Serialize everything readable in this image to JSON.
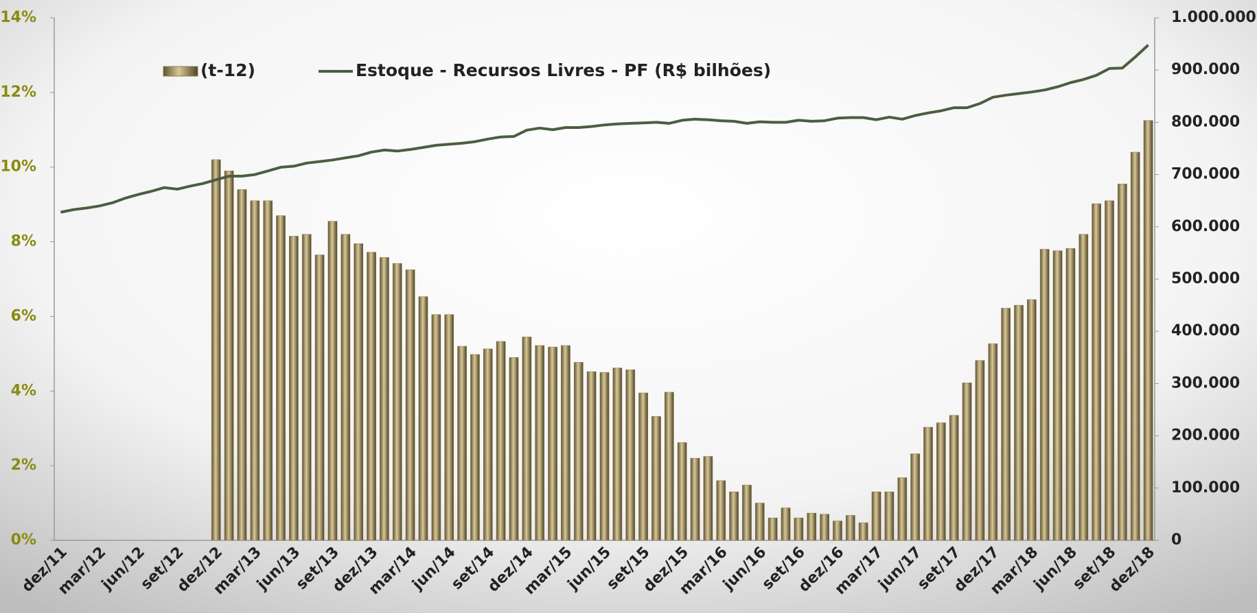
{
  "chart_data": {
    "type": "bar-line",
    "categories": [
      "dez/11",
      null,
      null,
      "mar/12",
      null,
      null,
      "jun/12",
      null,
      null,
      "set/12",
      null,
      null,
      "dez/12",
      null,
      null,
      "mar/13",
      null,
      null,
      "jun/13",
      null,
      null,
      "set/13",
      null,
      null,
      "dez/13",
      null,
      null,
      "mar/14",
      null,
      null,
      "jun/14",
      null,
      null,
      "set/14",
      null,
      null,
      "dez/14",
      null,
      null,
      "mar/15",
      null,
      null,
      "jun/15",
      null,
      null,
      "set/15",
      null,
      null,
      "dez/15",
      null,
      null,
      "mar/16",
      null,
      null,
      "jun/16",
      null,
      null,
      "set/16",
      null,
      null,
      "dez/16",
      null,
      null,
      "mar/17",
      null,
      null,
      "jun/17",
      null,
      null,
      "set/17",
      null,
      null,
      "dez/17",
      null,
      null,
      "mar/18",
      null,
      null,
      "jun/18",
      null,
      null,
      "set/18",
      null,
      null,
      "dez/18"
    ],
    "series": [
      {
        "name": "(t-12)",
        "color": "#8c7c4f",
        "kind": "bar",
        "axis": "y",
        "values": [
          null,
          null,
          null,
          null,
          null,
          null,
          null,
          null,
          null,
          null,
          null,
          null,
          10.2,
          9.9,
          9.4,
          9.1,
          9.1,
          8.7,
          8.15,
          8.2,
          7.65,
          8.55,
          8.2,
          7.95,
          7.72,
          7.58,
          7.42,
          7.25,
          6.53,
          6.05,
          6.05,
          5.2,
          4.98,
          5.13,
          5.33,
          4.9,
          5.45,
          5.22,
          5.18,
          5.22,
          4.77,
          4.52,
          4.5,
          4.62,
          4.57,
          3.95,
          3.32,
          3.97,
          2.62,
          2.2,
          2.25,
          1.6,
          1.3,
          1.48,
          1.0,
          0.6,
          0.87,
          0.6,
          0.73,
          0.7,
          0.52,
          0.67,
          0.47,
          1.3,
          1.3,
          1.68,
          2.32,
          3.03,
          3.15,
          3.35,
          4.22,
          4.82,
          5.27,
          6.22,
          6.3,
          6.45,
          7.8,
          7.76,
          7.82,
          8.2,
          9.02,
          9.1,
          9.55,
          10.4,
          11.25
        ]
      },
      {
        "name": "Estoque - Recursos Livres - PF (R$ bilhões)",
        "color": "#4b5e41",
        "kind": "line",
        "axis": "y2",
        "values": [
          628000,
          633000,
          636000,
          640000,
          646000,
          655000,
          662000,
          668000,
          675000,
          672000,
          678000,
          683000,
          690000,
          697000,
          697000,
          700000,
          707000,
          714000,
          716000,
          722000,
          725000,
          728000,
          732000,
          736000,
          743000,
          747000,
          745000,
          748000,
          752000,
          756000,
          758000,
          760000,
          763000,
          768000,
          772000,
          773000,
          785000,
          789000,
          786000,
          790000,
          790000,
          792000,
          795000,
          797000,
          798000,
          799000,
          800000,
          798000,
          804000,
          806000,
          805000,
          803000,
          802000,
          798000,
          801000,
          800000,
          800000,
          804000,
          802000,
          803000,
          808000,
          809000,
          809000,
          805000,
          810000,
          806000,
          813000,
          818000,
          822000,
          828000,
          828000,
          836000,
          848000,
          852000,
          855000,
          858000,
          862000,
          868000,
          876000,
          882000,
          890000,
          903000,
          904000,
          925000,
          948000
        ]
      }
    ],
    "ylim": [
      0,
      14
    ],
    "yticks": [
      {
        "value": 0,
        "label": "0%"
      },
      {
        "value": 2,
        "label": "2%"
      },
      {
        "value": 4,
        "label": "4%"
      },
      {
        "value": 6,
        "label": "6%"
      },
      {
        "value": 8,
        "label": "8%"
      },
      {
        "value": 10,
        "label": "10%"
      },
      {
        "value": 12,
        "label": "12%"
      },
      {
        "value": 14,
        "label": "14%"
      }
    ],
    "y2lim": [
      0,
      1000000
    ],
    "y2ticks": [
      0,
      {
        "value": 100000,
        "label": "100.000"
      },
      {
        "value": 200000,
        "label": "200.000"
      },
      {
        "value": 300000,
        "label": "300.000"
      },
      {
        "value": 400000,
        "label": "400.000"
      },
      {
        "value": 500000,
        "label": "500.000"
      },
      {
        "value": 600000,
        "label": "600.000"
      },
      {
        "value": 700000,
        "label": "700.000"
      },
      {
        "value": 800000,
        "label": "800.000"
      },
      {
        "value": 900000,
        "label": "900.000"
      },
      {
        "value": 1000000,
        "label": "1.000.000"
      }
    ],
    "legend": "top"
  }
}
